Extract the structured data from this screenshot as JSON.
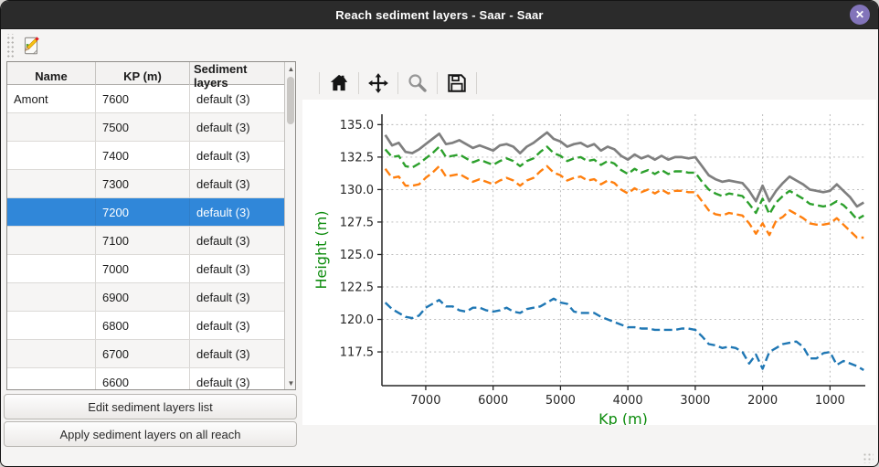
{
  "window": {
    "title": "Reach sediment layers - Saar - Saar",
    "close_label": "✕"
  },
  "toolbar": {
    "icons": [
      "edit-note-icon"
    ]
  },
  "left_panel": {
    "table": {
      "columns": [
        "Name",
        "KP (m)",
        "Sediment layers"
      ],
      "rows": [
        {
          "name": "Amont",
          "kp": "7600",
          "layers": "default (3)",
          "selected": false
        },
        {
          "name": "",
          "kp": "7500",
          "layers": "default (3)",
          "selected": false
        },
        {
          "name": "",
          "kp": "7400",
          "layers": "default (3)",
          "selected": false
        },
        {
          "name": "",
          "kp": "7300",
          "layers": "default (3)",
          "selected": false
        },
        {
          "name": "",
          "kp": "7200",
          "layers": "default (3)",
          "selected": true
        },
        {
          "name": "",
          "kp": "7100",
          "layers": "default (3)",
          "selected": false
        },
        {
          "name": "",
          "kp": "7000",
          "layers": "default (3)",
          "selected": false
        },
        {
          "name": "",
          "kp": "6900",
          "layers": "default (3)",
          "selected": false
        },
        {
          "name": "",
          "kp": "6800",
          "layers": "default (3)",
          "selected": false
        },
        {
          "name": "",
          "kp": "6700",
          "layers": "default (3)",
          "selected": false
        },
        {
          "name": "",
          "kp": "6600",
          "layers": "default (3)",
          "selected": false
        }
      ],
      "scrollbar_icons": [
        "scroll-up-icon",
        "scroll-down-icon"
      ]
    },
    "buttons": [
      "Edit sediment layers list",
      "Apply sediment layers on all reach"
    ]
  },
  "plot_toolbar": {
    "icons": [
      "home-icon",
      "pan-icon",
      "zoom-icon",
      "save-icon"
    ]
  },
  "chart_data": {
    "type": "line",
    "title": "",
    "xlabel": "Kp (m)",
    "ylabel": "Height (m)",
    "axis_label_color": "#0e8c0e",
    "grid": true,
    "legend": "none",
    "x_axis_reversed": true,
    "xlim": [
      7650,
      490
    ],
    "ylim": [
      114.9,
      135.8
    ],
    "x_ticks": [
      7000,
      6000,
      5000,
      4000,
      3000,
      2000,
      1000
    ],
    "y_ticks": [
      117.5,
      120.0,
      122.5,
      125.0,
      127.5,
      130.0,
      132.5,
      135.0
    ],
    "x": [
      7600,
      7500,
      7400,
      7300,
      7200,
      7100,
      7000,
      6900,
      6800,
      6700,
      6600,
      6500,
      6400,
      6300,
      6200,
      6100,
      6000,
      5900,
      5800,
      5700,
      5600,
      5500,
      5400,
      5300,
      5200,
      5100,
      5000,
      4900,
      4800,
      4700,
      4600,
      4500,
      4400,
      4300,
      4200,
      4100,
      4000,
      3900,
      3800,
      3700,
      3600,
      3500,
      3400,
      3300,
      3200,
      3100,
      3000,
      2900,
      2800,
      2700,
      2600,
      2500,
      2400,
      2300,
      2200,
      2100,
      2000,
      1900,
      1800,
      1700,
      1600,
      1500,
      1400,
      1300,
      1200,
      1100,
      1000,
      900,
      800,
      700,
      600,
      500
    ],
    "series": [
      {
        "name": "layer-top-gray",
        "color": "#7f7f7f",
        "style": "solid",
        "values": [
          134.2,
          133.4,
          133.6,
          132.9,
          132.8,
          133.1,
          133.5,
          133.9,
          134.3,
          133.5,
          133.6,
          133.8,
          133.5,
          133.2,
          133.4,
          133.2,
          133.0,
          133.4,
          133.5,
          133.3,
          132.8,
          133.3,
          133.6,
          134.0,
          134.4,
          133.9,
          133.7,
          133.3,
          133.5,
          133.6,
          133.3,
          133.5,
          133.0,
          133.3,
          133.1,
          132.6,
          132.3,
          132.7,
          132.4,
          132.6,
          132.3,
          132.6,
          132.3,
          132.5,
          132.5,
          132.4,
          132.5,
          131.8,
          131.1,
          130.8,
          130.6,
          130.7,
          130.6,
          130.5,
          129.9,
          129.1,
          130.3,
          129.1,
          129.9,
          130.5,
          131.0,
          130.7,
          130.4,
          130.0,
          129.9,
          129.8,
          129.9,
          130.4,
          129.9,
          129.4,
          128.7,
          129.0
        ]
      },
      {
        "name": "layer-green-dashed",
        "color": "#2ca02c",
        "style": "dashed",
        "values": [
          133.1,
          132.5,
          132.6,
          131.8,
          131.7,
          132.0,
          132.4,
          132.8,
          133.3,
          132.5,
          132.6,
          132.7,
          132.4,
          132.1,
          132.3,
          132.1,
          131.9,
          132.2,
          132.4,
          132.2,
          131.8,
          132.2,
          132.4,
          132.9,
          133.3,
          132.8,
          132.6,
          132.2,
          132.4,
          132.5,
          132.2,
          132.3,
          131.9,
          132.2,
          132.0,
          131.5,
          131.2,
          131.6,
          131.3,
          131.5,
          131.2,
          131.5,
          131.2,
          131.4,
          131.4,
          131.3,
          131.3,
          130.6,
          130.0,
          129.7,
          129.5,
          129.7,
          129.6,
          129.5,
          128.9,
          128.2,
          129.3,
          128.1,
          129.0,
          129.5,
          129.9,
          129.6,
          129.3,
          128.9,
          128.8,
          128.7,
          128.8,
          129.1,
          128.8,
          128.3,
          127.7,
          128.0
        ]
      },
      {
        "name": "layer-orange-dashed",
        "color": "#ff7f0e",
        "style": "dashed",
        "values": [
          131.6,
          130.9,
          131.0,
          130.3,
          130.3,
          130.4,
          130.9,
          131.3,
          131.8,
          131.0,
          131.1,
          131.2,
          130.9,
          130.6,
          130.8,
          130.6,
          130.4,
          130.7,
          130.9,
          130.7,
          130.3,
          130.7,
          130.9,
          131.4,
          131.8,
          131.3,
          131.1,
          130.7,
          130.9,
          131.0,
          130.7,
          130.8,
          130.4,
          130.7,
          130.5,
          130.0,
          129.7,
          130.1,
          129.8,
          130.0,
          129.7,
          130.0,
          129.7,
          129.9,
          129.9,
          129.8,
          129.8,
          129.1,
          128.4,
          128.1,
          128.0,
          128.2,
          128.1,
          128.0,
          127.4,
          126.6,
          127.4,
          126.5,
          127.6,
          127.9,
          128.4,
          128.1,
          127.8,
          127.4,
          127.3,
          127.3,
          127.4,
          127.8,
          127.3,
          126.8,
          126.3,
          126.3
        ]
      },
      {
        "name": "layer-bottom-blue",
        "color": "#1f77b4",
        "style": "dashed",
        "values": [
          121.3,
          120.8,
          120.5,
          120.2,
          120.1,
          120.3,
          120.9,
          121.2,
          121.5,
          121.0,
          121.0,
          120.7,
          120.6,
          120.9,
          120.9,
          120.7,
          120.6,
          120.7,
          120.9,
          120.6,
          120.5,
          120.8,
          120.9,
          121.0,
          121.3,
          121.6,
          121.3,
          121.2,
          120.6,
          120.5,
          120.5,
          120.5,
          120.2,
          120.0,
          119.8,
          119.6,
          119.4,
          119.4,
          119.3,
          119.3,
          119.2,
          119.2,
          119.2,
          119.2,
          119.3,
          119.3,
          119.2,
          118.7,
          118.1,
          118.0,
          117.8,
          117.9,
          117.8,
          117.5,
          116.6,
          117.3,
          116.2,
          117.5,
          117.8,
          118.1,
          118.2,
          118.3,
          117.9,
          117.0,
          117.0,
          117.4,
          117.5,
          116.5,
          116.8,
          116.6,
          116.4,
          116.1
        ]
      }
    ]
  }
}
